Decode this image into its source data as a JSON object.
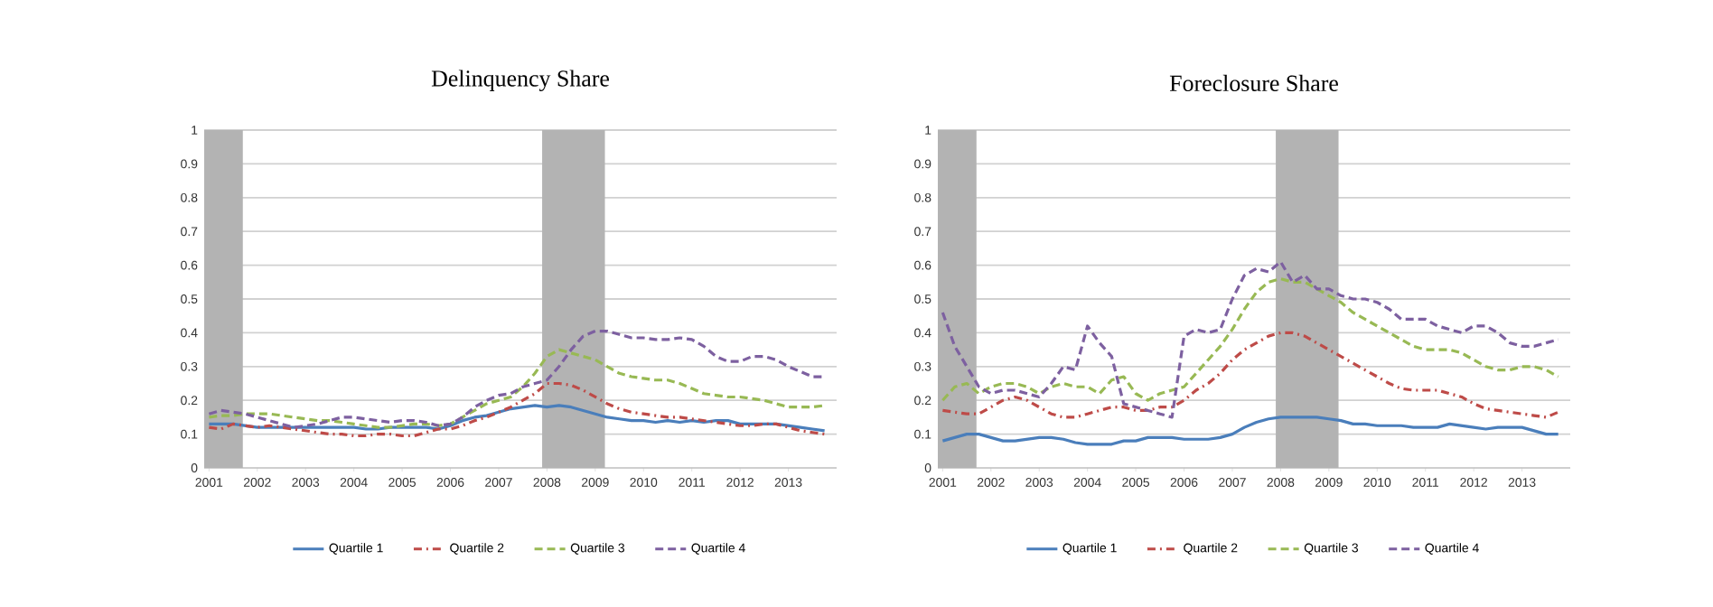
{
  "chart_data": [
    {
      "type": "line",
      "title": "Delinquency Share",
      "x": [
        2001,
        2001.25,
        2001.5,
        2001.75,
        2002,
        2002.25,
        2002.5,
        2002.75,
        2003,
        2003.25,
        2003.5,
        2003.75,
        2004,
        2004.25,
        2004.5,
        2004.75,
        2005,
        2005.25,
        2005.5,
        2005.75,
        2006,
        2006.25,
        2006.5,
        2006.75,
        2007,
        2007.25,
        2007.5,
        2007.75,
        2008,
        2008.25,
        2008.5,
        2008.75,
        2009,
        2009.25,
        2009.5,
        2009.75,
        2010,
        2010.25,
        2010.5,
        2010.75,
        2011,
        2011.25,
        2011.5,
        2011.75,
        2012,
        2012.25,
        2012.5,
        2012.75,
        2013,
        2013.25,
        2013.5,
        2013.75
      ],
      "series": [
        {
          "name": "Quartile 1",
          "color": "#4a7ebb",
          "line_style": "solid",
          "values": [
            0.13,
            0.13,
            0.13,
            0.125,
            0.12,
            0.12,
            0.12,
            0.12,
            0.12,
            0.12,
            0.12,
            0.12,
            0.12,
            0.115,
            0.115,
            0.12,
            0.12,
            0.12,
            0.12,
            0.115,
            0.125,
            0.14,
            0.15,
            0.155,
            0.165,
            0.175,
            0.18,
            0.185,
            0.18,
            0.185,
            0.18,
            0.17,
            0.16,
            0.15,
            0.145,
            0.14,
            0.14,
            0.135,
            0.14,
            0.135,
            0.14,
            0.135,
            0.14,
            0.14,
            0.13,
            0.13,
            0.13,
            0.13,
            0.125,
            0.12,
            0.115,
            0.11
          ]
        },
        {
          "name": "Quartile 2",
          "color": "#be4b48",
          "line_style": "dashdot",
          "values": [
            0.12,
            0.115,
            0.13,
            0.125,
            0.12,
            0.125,
            0.12,
            0.115,
            0.11,
            0.105,
            0.1,
            0.1,
            0.095,
            0.095,
            0.1,
            0.1,
            0.095,
            0.095,
            0.105,
            0.115,
            0.115,
            0.125,
            0.14,
            0.15,
            0.165,
            0.18,
            0.2,
            0.22,
            0.25,
            0.25,
            0.245,
            0.23,
            0.21,
            0.19,
            0.175,
            0.165,
            0.16,
            0.155,
            0.15,
            0.15,
            0.145,
            0.14,
            0.135,
            0.13,
            0.125,
            0.125,
            0.13,
            0.13,
            0.12,
            0.11,
            0.105,
            0.1
          ]
        },
        {
          "name": "Quartile 3",
          "color": "#98b954",
          "line_style": "dashed",
          "values": [
            0.15,
            0.155,
            0.155,
            0.16,
            0.16,
            0.16,
            0.155,
            0.15,
            0.145,
            0.14,
            0.14,
            0.135,
            0.13,
            0.125,
            0.12,
            0.12,
            0.125,
            0.13,
            0.13,
            0.125,
            0.13,
            0.15,
            0.17,
            0.19,
            0.2,
            0.21,
            0.24,
            0.28,
            0.33,
            0.35,
            0.34,
            0.33,
            0.32,
            0.3,
            0.28,
            0.27,
            0.265,
            0.26,
            0.26,
            0.25,
            0.235,
            0.22,
            0.215,
            0.21,
            0.21,
            0.205,
            0.2,
            0.19,
            0.18,
            0.18,
            0.18,
            0.185
          ]
        },
        {
          "name": "Quartile 4",
          "color": "#7d60a0",
          "line_style": "dashed",
          "values": [
            0.16,
            0.17,
            0.165,
            0.16,
            0.15,
            0.14,
            0.13,
            0.12,
            0.125,
            0.13,
            0.14,
            0.15,
            0.15,
            0.145,
            0.14,
            0.135,
            0.14,
            0.14,
            0.135,
            0.125,
            0.13,
            0.15,
            0.18,
            0.2,
            0.215,
            0.22,
            0.24,
            0.25,
            0.26,
            0.3,
            0.35,
            0.39,
            0.405,
            0.405,
            0.395,
            0.385,
            0.385,
            0.38,
            0.38,
            0.385,
            0.38,
            0.36,
            0.33,
            0.315,
            0.315,
            0.33,
            0.33,
            0.32,
            0.3,
            0.285,
            0.27,
            0.27
          ]
        }
      ],
      "xlim": [
        2000.9,
        2014
      ],
      "xticks": [
        2001,
        2002,
        2003,
        2004,
        2005,
        2006,
        2007,
        2008,
        2009,
        2010,
        2011,
        2012,
        2013
      ],
      "ylim": [
        0,
        1
      ],
      "yticks": [
        0,
        0.1,
        0.2,
        0.3,
        0.4,
        0.5,
        0.6,
        0.7,
        0.8,
        0.9,
        1
      ],
      "bands": [
        {
          "axis": "x",
          "from": 2000.9,
          "to": 2001.7,
          "color": "#b3b3b3"
        },
        {
          "axis": "x",
          "from": 2007.9,
          "to": 2009.2,
          "color": "#b3b3b3"
        }
      ],
      "grid": "y",
      "legend": "bottom"
    },
    {
      "type": "line",
      "title": "Foreclosure Share",
      "x": [
        2001,
        2001.25,
        2001.5,
        2001.75,
        2002,
        2002.25,
        2002.5,
        2002.75,
        2003,
        2003.25,
        2003.5,
        2003.75,
        2004,
        2004.25,
        2004.5,
        2004.75,
        2005,
        2005.25,
        2005.5,
        2005.75,
        2006,
        2006.25,
        2006.5,
        2006.75,
        2007,
        2007.25,
        2007.5,
        2007.75,
        2008,
        2008.25,
        2008.5,
        2008.75,
        2009,
        2009.25,
        2009.5,
        2009.75,
        2010,
        2010.25,
        2010.5,
        2010.75,
        2011,
        2011.25,
        2011.5,
        2011.75,
        2012,
        2012.25,
        2012.5,
        2012.75,
        2013,
        2013.25,
        2013.5,
        2013.75
      ],
      "series": [
        {
          "name": "Quartile 1",
          "color": "#4a7ebb",
          "line_style": "solid",
          "values": [
            0.08,
            0.09,
            0.1,
            0.1,
            0.09,
            0.08,
            0.08,
            0.085,
            0.09,
            0.09,
            0.085,
            0.075,
            0.07,
            0.07,
            0.07,
            0.08,
            0.08,
            0.09,
            0.09,
            0.09,
            0.085,
            0.085,
            0.085,
            0.09,
            0.1,
            0.12,
            0.135,
            0.145,
            0.15,
            0.15,
            0.15,
            0.15,
            0.145,
            0.14,
            0.13,
            0.13,
            0.125,
            0.125,
            0.125,
            0.12,
            0.12,
            0.12,
            0.13,
            0.125,
            0.12,
            0.115,
            0.12,
            0.12,
            0.12,
            0.11,
            0.1,
            0.1
          ]
        },
        {
          "name": "Quartile 2",
          "color": "#be4b48",
          "line_style": "dashdot",
          "values": [
            0.17,
            0.165,
            0.16,
            0.16,
            0.18,
            0.2,
            0.21,
            0.2,
            0.18,
            0.16,
            0.15,
            0.15,
            0.16,
            0.17,
            0.18,
            0.18,
            0.17,
            0.17,
            0.18,
            0.18,
            0.2,
            0.23,
            0.25,
            0.28,
            0.32,
            0.35,
            0.37,
            0.39,
            0.4,
            0.4,
            0.39,
            0.37,
            0.35,
            0.33,
            0.31,
            0.29,
            0.27,
            0.25,
            0.235,
            0.23,
            0.23,
            0.23,
            0.22,
            0.21,
            0.19,
            0.175,
            0.17,
            0.165,
            0.16,
            0.155,
            0.15,
            0.165
          ]
        },
        {
          "name": "Quartile 3",
          "color": "#98b954",
          "line_style": "dashed",
          "values": [
            0.2,
            0.24,
            0.25,
            0.22,
            0.24,
            0.25,
            0.25,
            0.24,
            0.22,
            0.24,
            0.25,
            0.24,
            0.24,
            0.22,
            0.26,
            0.27,
            0.22,
            0.2,
            0.22,
            0.23,
            0.24,
            0.28,
            0.32,
            0.36,
            0.41,
            0.47,
            0.52,
            0.55,
            0.56,
            0.55,
            0.55,
            0.53,
            0.51,
            0.49,
            0.46,
            0.44,
            0.42,
            0.4,
            0.38,
            0.36,
            0.35,
            0.35,
            0.35,
            0.34,
            0.32,
            0.3,
            0.29,
            0.29,
            0.3,
            0.3,
            0.29,
            0.27
          ]
        },
        {
          "name": "Quartile 4",
          "color": "#7d60a0",
          "line_style": "dashed",
          "values": [
            0.46,
            0.36,
            0.3,
            0.24,
            0.22,
            0.23,
            0.23,
            0.22,
            0.21,
            0.25,
            0.3,
            0.29,
            0.42,
            0.37,
            0.33,
            0.19,
            0.18,
            0.17,
            0.16,
            0.15,
            0.39,
            0.41,
            0.4,
            0.41,
            0.5,
            0.57,
            0.59,
            0.58,
            0.61,
            0.55,
            0.57,
            0.53,
            0.53,
            0.51,
            0.5,
            0.5,
            0.49,
            0.47,
            0.44,
            0.44,
            0.44,
            0.42,
            0.41,
            0.4,
            0.42,
            0.42,
            0.4,
            0.37,
            0.36,
            0.36,
            0.37,
            0.38
          ]
        }
      ],
      "xlim": [
        2000.9,
        2014
      ],
      "xticks": [
        2001,
        2002,
        2003,
        2004,
        2005,
        2006,
        2007,
        2008,
        2009,
        2010,
        2011,
        2012,
        2013
      ],
      "ylim": [
        0,
        1
      ],
      "yticks": [
        0,
        0.1,
        0.2,
        0.3,
        0.4,
        0.5,
        0.6,
        0.7,
        0.8,
        0.9,
        1
      ],
      "bands": [
        {
          "axis": "x",
          "from": 2000.9,
          "to": 2001.7,
          "color": "#b3b3b3"
        },
        {
          "axis": "x",
          "from": 2007.9,
          "to": 2009.2,
          "color": "#b3b3b3"
        }
      ],
      "grid": "y",
      "legend": "bottom"
    }
  ]
}
